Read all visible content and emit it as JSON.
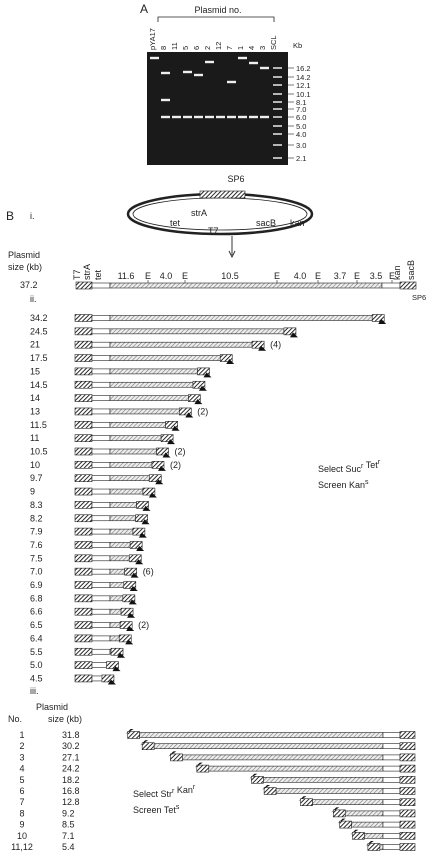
{
  "panel_a": {
    "label": "A",
    "header": "Plasmid no.",
    "lanes": [
      "pYA17",
      "8",
      "11",
      "5",
      "6",
      "2",
      "12",
      "7",
      "1",
      "4",
      "3",
      "SCL"
    ],
    "unit": "Kb",
    "ladder": [
      "16.2",
      "14.2",
      "12.1",
      "10.1",
      "8.1",
      "7.0",
      "6.0",
      "5.0",
      "4.0",
      "3.0",
      "2.1"
    ]
  },
  "panel_b": {
    "label": "B",
    "i": {
      "label": "i.",
      "plasmid": {
        "sp6": "SP6",
        "tet": "tet",
        "stra": "strA",
        "t7": "T7",
        "sacb": "sacB",
        "kan": "kan"
      },
      "map": {
        "size_title_1": "Plasmid",
        "size_title_2": "size (kb)",
        "size": "37.2",
        "labels": [
          "T7",
          "strA",
          "tet",
          "11.6",
          "E",
          "4.0",
          "E",
          "10.5",
          "E",
          "4.0",
          "E",
          "3.7",
          "E",
          "3.5",
          "E",
          "kan",
          "sacB"
        ],
        "sp6": "SP6"
      }
    },
    "ii": {
      "label": "ii.",
      "rows": [
        {
          "size": "34.2"
        },
        {
          "size": "24.5"
        },
        {
          "size": "21",
          "note": "(4)"
        },
        {
          "size": "17.5"
        },
        {
          "size": "15"
        },
        {
          "size": "14.5"
        },
        {
          "size": "14"
        },
        {
          "size": "13",
          "note": "(2)"
        },
        {
          "size": "11.5"
        },
        {
          "size": "11"
        },
        {
          "size": "10.5",
          "note": "(2)"
        },
        {
          "size": "10",
          "note": "(2)"
        },
        {
          "size": "9.7"
        },
        {
          "size": "9"
        },
        {
          "size": "8.3"
        },
        {
          "size": "8.2"
        },
        {
          "size": "7.9"
        },
        {
          "size": "7.6"
        },
        {
          "size": "7.5"
        },
        {
          "size": "7.0",
          "note": "(6)"
        },
        {
          "size": "6.9"
        },
        {
          "size": "6.8"
        },
        {
          "size": "6.6"
        },
        {
          "size": "6.5",
          "note": "(2)"
        },
        {
          "size": "6.4"
        },
        {
          "size": "5.5"
        },
        {
          "size": "5.0"
        },
        {
          "size": "4.5"
        }
      ],
      "select": [
        {
          "base": "Select Suc",
          "sup": "r"
        },
        {
          "base": " Tet",
          "sup": "r"
        }
      ],
      "screen": {
        "base": "Screen Kan",
        "sup": "s"
      }
    },
    "iii": {
      "label": "iii.",
      "header_1": "Plasmid",
      "header_no": "No.",
      "header_size": "size (kb)",
      "rows": [
        {
          "no": "1",
          "size": "31.8"
        },
        {
          "no": "2",
          "size": "30.2"
        },
        {
          "no": "3",
          "size": "27.1"
        },
        {
          "no": "4",
          "size": "24.2"
        },
        {
          "no": "5",
          "size": "18.2"
        },
        {
          "no": "6",
          "size": "16.8"
        },
        {
          "no": "7",
          "size": "12.8"
        },
        {
          "no": "8",
          "size": "9.2"
        },
        {
          "no": "9",
          "size": "8.5"
        },
        {
          "no": "10",
          "size": "7.1"
        },
        {
          "no": "11,12",
          "size": "5.4"
        }
      ],
      "select": [
        {
          "base": "Select Str",
          "sup": "r"
        },
        {
          "base": " Kan",
          "sup": "r"
        }
      ],
      "screen": {
        "base": "Screen Tet",
        "sup": "s"
      }
    }
  }
}
